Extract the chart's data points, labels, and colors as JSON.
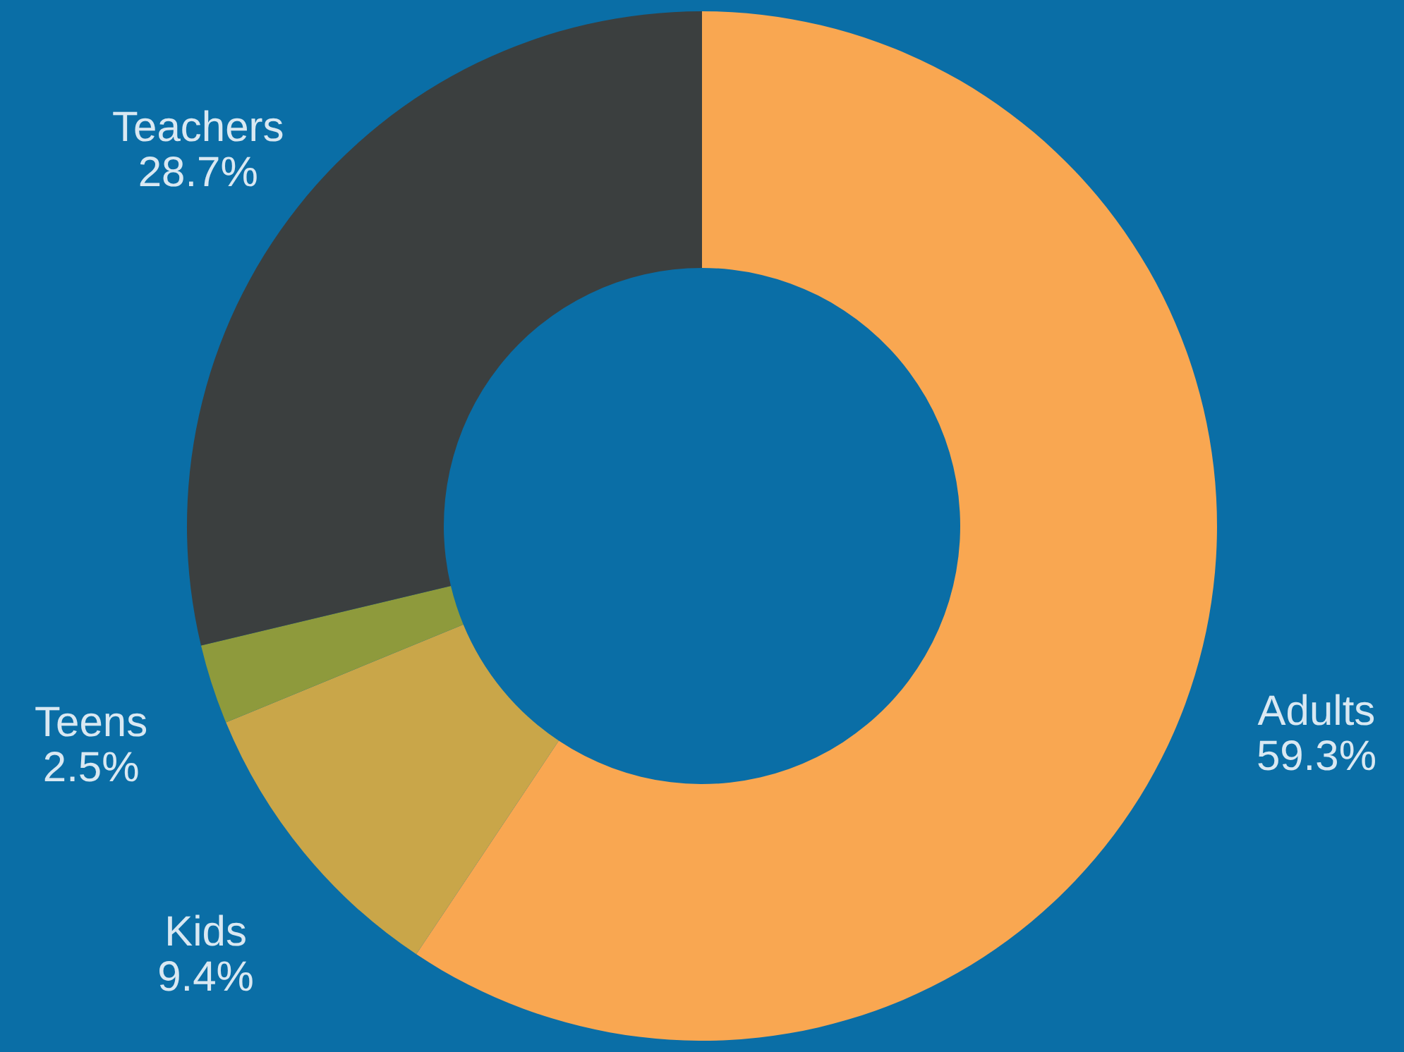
{
  "chart_data": {
    "type": "donut",
    "categories": [
      "Adults",
      "Kids",
      "Teens",
      "Teachers"
    ],
    "values": [
      59.3,
      9.4,
      2.5,
      28.7
    ],
    "value_labels": [
      "59.3%",
      "9.4%",
      "2.5%",
      "28.7%"
    ],
    "colors": [
      "#f9a751",
      "#c9a649",
      "#8e9a3c",
      "#3b3f3f"
    ]
  }
}
